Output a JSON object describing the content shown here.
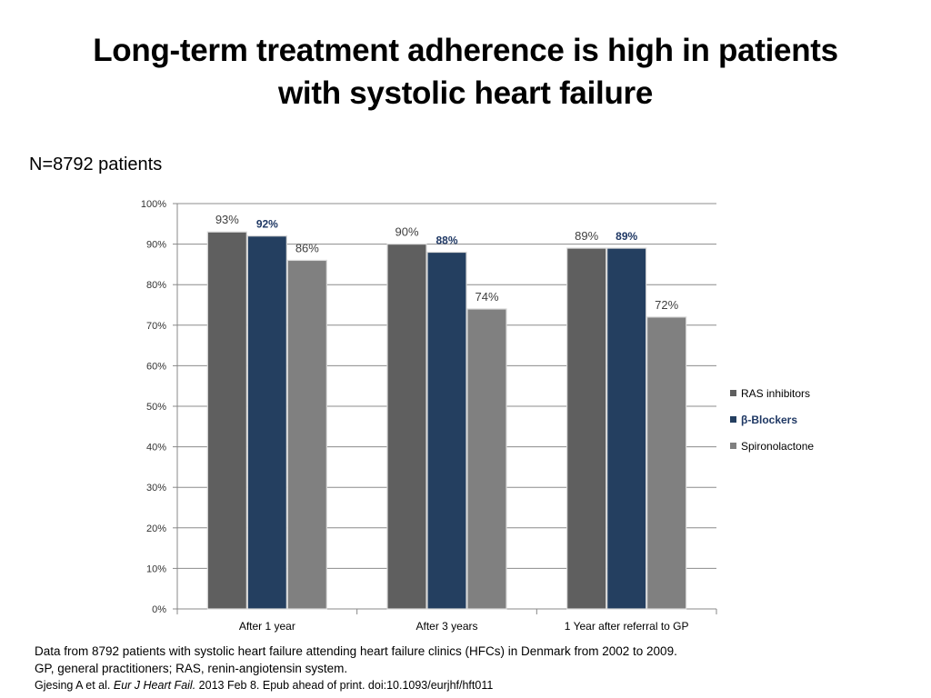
{
  "slide": {
    "title_line1": "Long-term treatment adherence is high in patients",
    "title_line2": "with systolic heart failure",
    "subtitle": "N=8792 patients"
  },
  "footer": {
    "line1": "Data from 8792 patients with systolic heart failure attending heart failure clinics (HFCs) in Denmark from 2002 to 2009.",
    "line2": "GP, general practitioners; RAS, renin-angiotensin system.",
    "cite_authors": "Gjesing A et al.",
    "cite_journal": "Eur J Heart Fail.",
    "cite_rest": "2013 Feb 8. Epub ahead of print. doi:10.1093/eurjhf/hft011"
  },
  "chart_data": {
    "type": "bar",
    "title": "",
    "xlabel": "",
    "ylabel": "",
    "categories": [
      "After 1 year",
      "After 3 years",
      "1 Year after referral to GP"
    ],
    "series": [
      {
        "name": "RAS inhibitors",
        "values": [
          93,
          90,
          89
        ],
        "labels": [
          "93%",
          "90%",
          "89%"
        ],
        "color": "#5f5f5f",
        "label_color": "#404040"
      },
      {
        "name": "β-Blockers",
        "values": [
          92,
          88,
          89
        ],
        "labels": [
          "92%",
          "88%",
          "89%"
        ],
        "color": "#243f60",
        "label_color": "#1f3864"
      },
      {
        "name": "Spironolactone",
        "values": [
          86,
          74,
          72
        ],
        "labels": [
          "86%",
          "74%",
          "72%"
        ],
        "color": "#808080",
        "label_color": "#404040"
      }
    ],
    "ylim": [
      0,
      100
    ],
    "yticks": [
      0,
      10,
      20,
      30,
      40,
      50,
      60,
      70,
      80,
      90,
      100
    ],
    "ytick_labels": [
      "0%",
      "10%",
      "20%",
      "30%",
      "40%",
      "50%",
      "60%",
      "70%",
      "80%",
      "90%",
      "100%"
    ],
    "grid": true,
    "legend_position": "right"
  }
}
